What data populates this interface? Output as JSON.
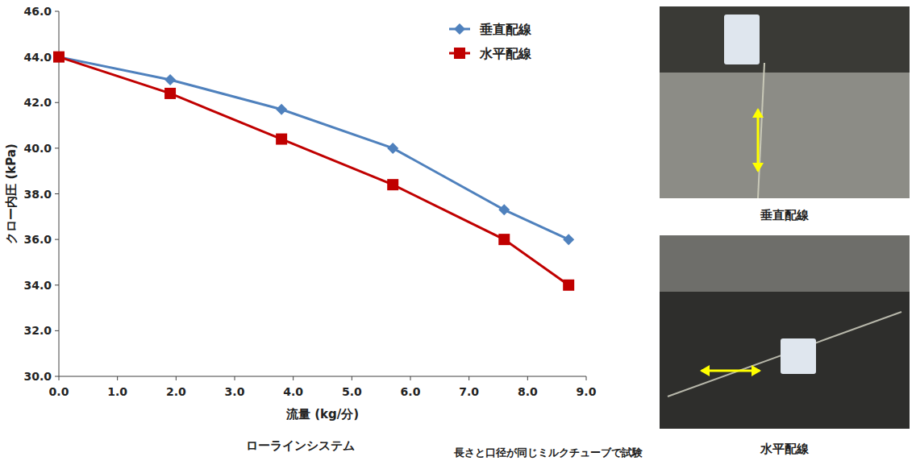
{
  "chart_data": {
    "type": "line",
    "x_label": "流量 (kg/分)",
    "y_label": "クロー内圧 (kPa)",
    "annotations": [
      "ローラインシステム",
      "長さと口径が同じミルクチューブで試験"
    ],
    "x": [
      0.0,
      1.9,
      3.8,
      5.7,
      7.6,
      8.7
    ],
    "series": [
      {
        "name": "垂直配線",
        "color": "#4f81bd",
        "marker": "diamond",
        "line_style": "solid",
        "values": [
          44.0,
          43.0,
          41.7,
          40.0,
          37.3,
          36.0
        ]
      },
      {
        "name": "水平配線",
        "color": "#c00000",
        "marker": "square",
        "line_style": "solid",
        "values": [
          44.0,
          42.4,
          40.4,
          38.4,
          36.0,
          34.0
        ]
      }
    ],
    "xlim": [
      0,
      9
    ],
    "xticks": [
      {
        "value": 0,
        "label": "0.0"
      },
      {
        "value": 1,
        "label": "1.0"
      },
      {
        "value": 2,
        "label": "2.0"
      },
      {
        "value": 3,
        "label": "3.0"
      },
      {
        "value": 4,
        "label": "4.0"
      },
      {
        "value": 5,
        "label": "5.0"
      },
      {
        "value": 6,
        "label": "6.0"
      },
      {
        "value": 7,
        "label": "7.0"
      },
      {
        "value": 8,
        "label": "8.0"
      },
      {
        "value": 9,
        "label": "9.0"
      }
    ],
    "ylim": [
      30,
      46
    ],
    "yticks": [
      {
        "value": 30,
        "label": "30.0"
      },
      {
        "value": 32,
        "label": "32.0"
      },
      {
        "value": 34,
        "label": "34.0"
      },
      {
        "value": 36,
        "label": "36.0"
      },
      {
        "value": 38,
        "label": "38.0"
      },
      {
        "value": 40,
        "label": "40.0"
      },
      {
        "value": 42,
        "label": "42.0"
      },
      {
        "value": 44,
        "label": "44.0"
      },
      {
        "value": 46,
        "label": "46.0"
      }
    ],
    "grid": false,
    "legend": "top-right"
  },
  "photos": [
    {
      "caption": "垂直配線"
    },
    {
      "caption": "水平配線"
    }
  ]
}
